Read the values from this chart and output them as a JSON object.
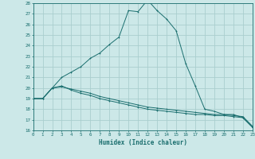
{
  "title": "",
  "xlabel": "Humidex (Indice chaleur)",
  "ylabel": "",
  "bg_color": "#cce8e8",
  "grid_color": "#aacece",
  "line_color": "#1a6e6e",
  "xmin": 0,
  "xmax": 23,
  "ymin": 16,
  "ymax": 28,
  "series1_x": [
    0,
    1,
    2,
    3,
    4,
    5,
    6,
    7,
    8,
    9,
    10,
    11,
    12,
    13,
    14,
    15,
    16,
    17,
    18,
    19,
    20,
    21,
    22,
    23
  ],
  "series1_y": [
    19,
    19,
    20,
    21,
    21.5,
    22,
    22.8,
    23.3,
    24.1,
    24.8,
    27.3,
    27.2,
    28.3,
    27.3,
    26.5,
    25.4,
    22.3,
    20.2,
    18.0,
    17.8,
    17.5,
    17.5,
    17.2,
    16.3
  ],
  "series2_x": [
    0,
    1,
    2,
    3,
    4,
    5,
    6,
    7,
    8,
    9,
    10,
    11,
    12,
    13,
    14,
    15,
    16,
    17,
    18,
    19,
    20,
    21,
    22,
    23
  ],
  "series2_y": [
    19,
    19,
    20,
    20.2,
    19.8,
    19.5,
    19.3,
    19.0,
    18.8,
    18.6,
    18.4,
    18.2,
    18.0,
    17.9,
    17.8,
    17.7,
    17.6,
    17.5,
    17.5,
    17.4,
    17.4,
    17.3,
    17.2,
    16.3
  ],
  "series3_x": [
    0,
    1,
    2,
    3,
    4,
    5,
    6,
    7,
    8,
    9,
    10,
    11,
    12,
    13,
    14,
    15,
    16,
    17,
    18,
    19,
    20,
    21,
    22,
    23
  ],
  "series3_y": [
    19,
    19,
    20,
    20.1,
    19.9,
    19.7,
    19.5,
    19.2,
    19.0,
    18.8,
    18.6,
    18.4,
    18.2,
    18.1,
    18.0,
    17.9,
    17.8,
    17.7,
    17.6,
    17.5,
    17.5,
    17.4,
    17.3,
    16.4
  ]
}
